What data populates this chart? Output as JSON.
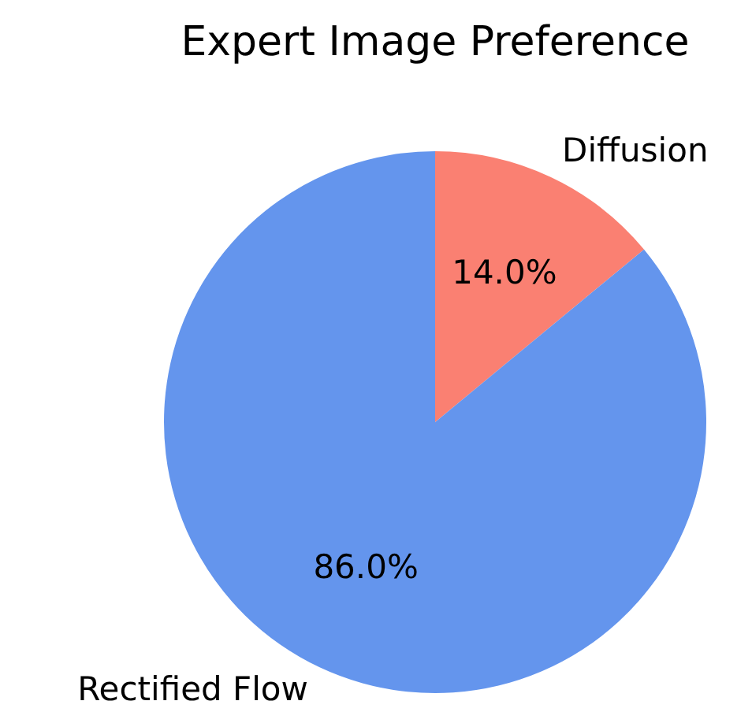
{
  "chart_data": {
    "type": "pie",
    "title": "Expert Image Preference",
    "categories": [
      "Diffusion",
      "Rectified Flow"
    ],
    "values": [
      14,
      86
    ],
    "colors": [
      "#fa8072",
      "#6495ed"
    ],
    "value_labels": [
      "14.0%",
      "86.0%"
    ],
    "legend": false
  }
}
